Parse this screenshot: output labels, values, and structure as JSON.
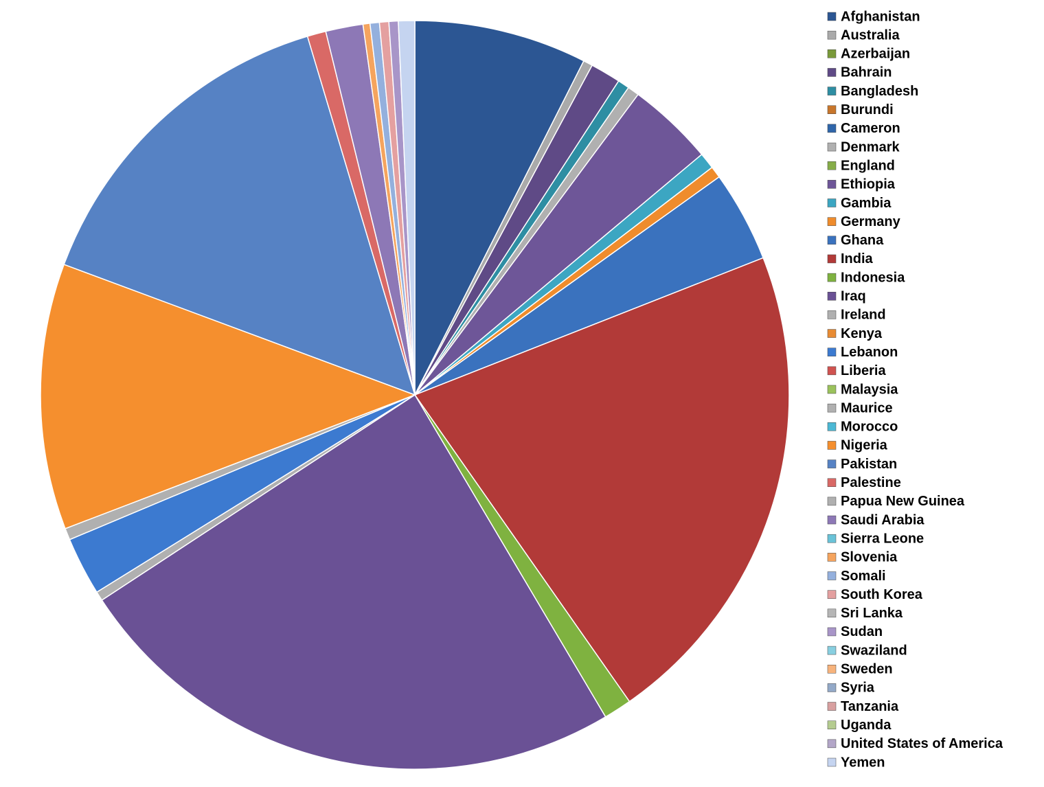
{
  "chart_data": {
    "type": "pie",
    "categories": [
      "Afghanistan",
      "Australia",
      "Azerbaijan",
      "Bahrain",
      "Bangladesh",
      "Burundi",
      "Cameron",
      "Denmark",
      "England",
      "Ethiopia",
      "Gambia",
      "Germany",
      "Ghana",
      "India",
      "Indonesia",
      "Iraq",
      "Ireland",
      "Kenya",
      "Lebanon",
      "Liberia",
      "Malaysia",
      "Maurice",
      "Morocco",
      "Nigeria",
      "Pakistan",
      "Palestine",
      "Papua New Guinea",
      "Saudi Arabia",
      "Sierra Leone",
      "Slovenia",
      "Somali",
      "South Korea",
      "Sri Lanka",
      "Sudan",
      "Swaziland",
      "Sweden",
      "Syria",
      "Tanzania",
      "Uganda",
      "United States of America",
      "Yemen"
    ],
    "values": [
      7.4,
      0.4,
      0,
      1.3,
      0.5,
      0,
      0,
      0.5,
      0,
      3.7,
      0.7,
      0.5,
      3.9,
      21.1,
      1.2,
      24.1,
      0.4,
      0,
      2.5,
      0,
      0,
      0.5,
      0,
      11.4,
      14.6,
      0.8,
      0,
      1.6,
      0,
      0.3,
      0.4,
      0.4,
      0,
      0.4,
      0,
      0,
      0,
      0,
      0,
      0,
      0.7
    ],
    "colors": [
      "#2c5693",
      "#aaaaaa",
      "#7a9a3a",
      "#5f4a86",
      "#2e8ea3",
      "#c8762c",
      "#2f66aa",
      "#b0b0b0",
      "#86ad48",
      "#6e5698",
      "#3ca6c2",
      "#ef8c2c",
      "#3a72be",
      "#b23a38",
      "#7fb240",
      "#6a5195",
      "#b0b0b0",
      "#e88b33",
      "#3c7ad0",
      "#d05350",
      "#9bc25c",
      "#b0b0b0",
      "#4cb8d4",
      "#f58f2e",
      "#5682c4",
      "#d96966",
      "#b0b0b0",
      "#8d78b6",
      "#6ac3d8",
      "#f5a45e",
      "#94b0dd",
      "#e4a0a0",
      "#b6b6b6",
      "#a895c8",
      "#88cfe0",
      "#f7b37c",
      "#93a9c8",
      "#d8a0a0",
      "#b5cc90",
      "#b3a6c8",
      "#c5d4f0"
    ]
  }
}
